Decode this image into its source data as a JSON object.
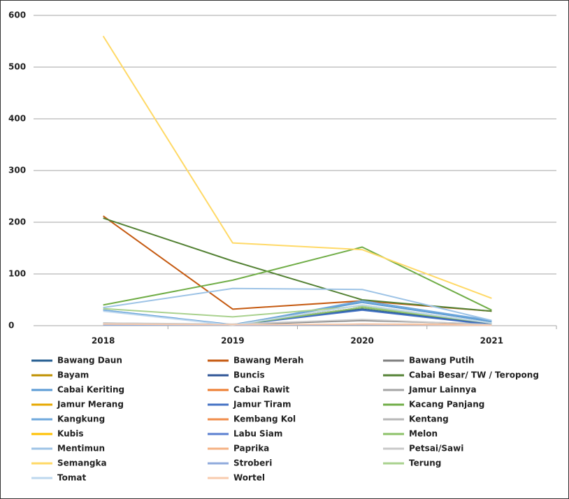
{
  "chart_data": {
    "type": "line",
    "categories": [
      "2018",
      "2019",
      "2020",
      "2021"
    ],
    "ylim": [
      0,
      600
    ],
    "yticks": [
      0,
      100,
      200,
      300,
      400,
      500,
      600
    ],
    "grid": true,
    "series": [
      {
        "name": "Bawang Daun",
        "color": "#255e91",
        "values": [
          3,
          2,
          32,
          2
        ]
      },
      {
        "name": "Bawang Merah",
        "color": "#c55a11",
        "values": [
          212,
          32,
          48,
          28
        ]
      },
      {
        "name": "Bawang Putih",
        "color": "#7f7f7f",
        "values": [
          5,
          2,
          10,
          3
        ]
      },
      {
        "name": "Bayam",
        "color": "#bf9000",
        "values": [
          2,
          1,
          35,
          4
        ]
      },
      {
        "name": "Buncis",
        "color": "#2f5597",
        "values": [
          1,
          1,
          35,
          3
        ]
      },
      {
        "name": "Cabai Besar/ TW / Teropong",
        "color": "#548235",
        "values": [
          208,
          125,
          50,
          28
        ]
      },
      {
        "name": "Cabai Keriting",
        "color": "#5b9bd5",
        "values": [
          30,
          2,
          45,
          8
        ]
      },
      {
        "name": "Cabai Rawit",
        "color": "#ed7d31",
        "values": [
          2,
          1,
          3,
          2
        ]
      },
      {
        "name": "Jamur Lainnya",
        "color": "#a5a5a5",
        "values": [
          1,
          1,
          2,
          1
        ]
      },
      {
        "name": "Jamur Merang",
        "color": "#e6a800",
        "values": [
          1,
          1,
          2,
          1
        ]
      },
      {
        "name": "Jamur Tiram",
        "color": "#4472c4",
        "values": [
          1,
          1,
          30,
          2
        ]
      },
      {
        "name": "Kacang Panjang",
        "color": "#70ad47",
        "values": [
          40,
          88,
          152,
          30
        ]
      },
      {
        "name": "Kangkung",
        "color": "#6fa8dc",
        "values": [
          30,
          1,
          48,
          10
        ]
      },
      {
        "name": "Kembang Kol",
        "color": "#f08c4a",
        "values": [
          1,
          1,
          2,
          1
        ]
      },
      {
        "name": "Kentang",
        "color": "#b7b7b7",
        "values": [
          1,
          1,
          2,
          1
        ]
      },
      {
        "name": "Kubis",
        "color": "#ffc000",
        "values": [
          1,
          1,
          40,
          5
        ]
      },
      {
        "name": "Labu Siam",
        "color": "#5a7fd0",
        "values": [
          1,
          1,
          2,
          1
        ]
      },
      {
        "name": "Melon",
        "color": "#8cc168",
        "values": [
          1,
          1,
          35,
          5
        ]
      },
      {
        "name": "Mentimun",
        "color": "#9dc3e6",
        "values": [
          35,
          72,
          70,
          10
        ]
      },
      {
        "name": "Paprika",
        "color": "#f4b183",
        "values": [
          1,
          1,
          2,
          1
        ]
      },
      {
        "name": "Petsai/Sawi",
        "color": "#c9c9c9",
        "values": [
          5,
          3,
          12,
          2
        ]
      },
      {
        "name": "Semangka",
        "color": "#ffd966",
        "values": [
          560,
          160,
          147,
          53
        ]
      },
      {
        "name": "Stroberi",
        "color": "#8faadc",
        "values": [
          1,
          1,
          2,
          1
        ]
      },
      {
        "name": "Terung",
        "color": "#a9d18e",
        "values": [
          33,
          17,
          38,
          5
        ]
      },
      {
        "name": "Tomat",
        "color": "#bdd7ee",
        "values": [
          28,
          1,
          40,
          5
        ]
      },
      {
        "name": "Wortel",
        "color": "#f8cbad",
        "values": [
          3,
          2,
          3,
          1
        ]
      }
    ]
  }
}
